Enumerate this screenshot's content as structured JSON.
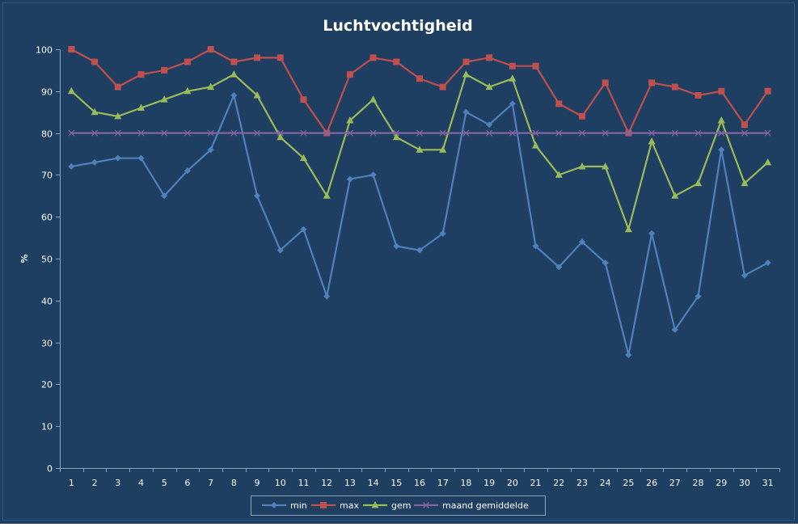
{
  "chart_data": {
    "type": "line",
    "title": "Luchtvochtigheid",
    "xlabel": "",
    "ylabel": "%",
    "ylim": [
      0,
      100
    ],
    "yticks": [
      0,
      10,
      20,
      30,
      40,
      50,
      60,
      70,
      80,
      90,
      100
    ],
    "categories": [
      "1",
      "2",
      "3",
      "4",
      "5",
      "6",
      "7",
      "8",
      "9",
      "10",
      "11",
      "12",
      "13",
      "14",
      "15",
      "16",
      "17",
      "18",
      "19",
      "20",
      "21",
      "22",
      "23",
      "24",
      "25",
      "26",
      "27",
      "28",
      "29",
      "30",
      "31"
    ],
    "grid": false,
    "legend": "bottom",
    "series": [
      {
        "name": "min",
        "color": "#4F81BD",
        "marker": "diamond",
        "values": [
          72,
          73,
          74,
          74,
          65,
          71,
          76,
          89,
          65,
          52,
          57,
          41,
          69,
          70,
          53,
          52,
          56,
          85,
          82,
          87,
          53,
          48,
          54,
          49,
          27,
          56,
          33,
          41,
          76,
          46,
          49
        ]
      },
      {
        "name": "max",
        "color": "#C0504D",
        "marker": "square",
        "values": [
          100,
          97,
          91,
          94,
          95,
          97,
          100,
          97,
          98,
          98,
          88,
          80,
          94,
          98,
          97,
          93,
          91,
          97,
          98,
          96,
          96,
          87,
          84,
          92,
          80,
          92,
          91,
          89,
          90,
          82,
          90
        ]
      },
      {
        "name": "gem",
        "color": "#9BBB59",
        "marker": "triangle",
        "values": [
          90,
          85,
          84,
          86,
          88,
          90,
          91,
          94,
          89,
          79,
          74,
          65,
          83,
          88,
          79,
          76,
          76,
          94,
          91,
          93,
          77,
          70,
          72,
          72,
          57,
          78,
          65,
          68,
          83,
          68,
          73
        ]
      },
      {
        "name": "maand gemiddelde",
        "color": "#8064A2",
        "marker": "x",
        "values": [
          80,
          80,
          80,
          80,
          80,
          80,
          80,
          80,
          80,
          80,
          80,
          80,
          80,
          80,
          80,
          80,
          80,
          80,
          80,
          80,
          80,
          80,
          80,
          80,
          80,
          80,
          80,
          80,
          80,
          80,
          80
        ]
      }
    ],
    "colors": {
      "background": "#1F3F62",
      "border": "#2C5784",
      "text": "#FFFFFF",
      "axis": "#8FA3B8"
    }
  }
}
